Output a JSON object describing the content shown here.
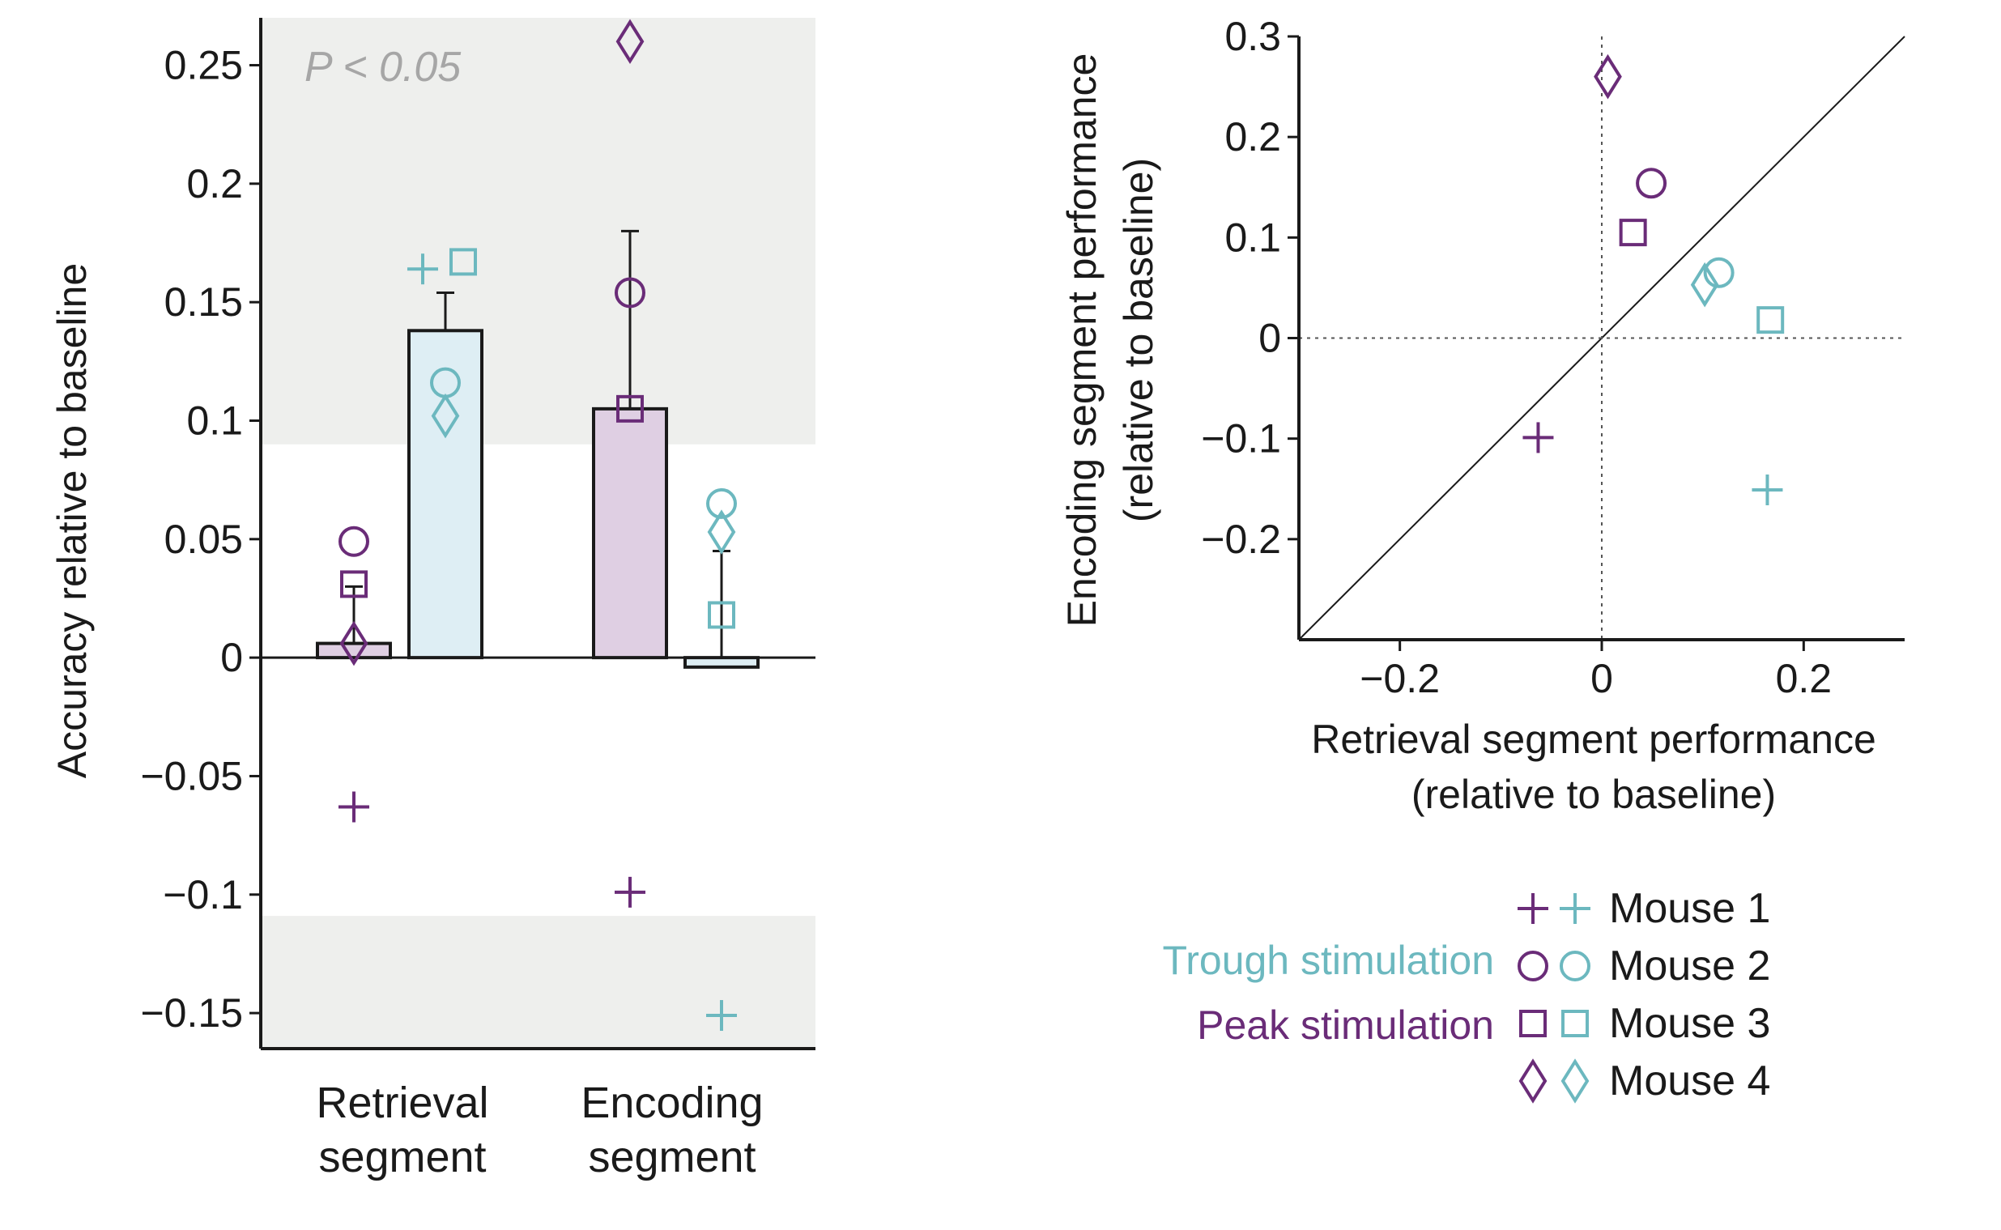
{
  "colors": {
    "trough": "#6cb8bf",
    "peak": "#6a2c78",
    "trough_fill": "#deeef4",
    "peak_fill": "#dfcfe3",
    "axis": "#1a1a1a",
    "significance_band": "#eeefed",
    "significance_text": "#a6a6a6"
  },
  "chart_data": [
    {
      "type": "bar",
      "ylabel": "Accuracy relative to baseline",
      "ylim": [
        -0.165,
        0.27
      ],
      "yticks": [
        0.25,
        0.2,
        0.15,
        0.1,
        0.05,
        0,
        -0.05,
        -0.1,
        -0.15
      ],
      "ytick_labels": [
        "0.25",
        "0.2",
        "0.15",
        "0.1",
        "0.05",
        "0",
        "−0.05",
        "−0.1",
        "−0.15"
      ],
      "significance": {
        "label": "P < 0.05",
        "upper_threshold": 0.09,
        "lower_threshold": -0.109
      },
      "groups": [
        {
          "label_line1": "Retrieval",
          "label_line2": "segment",
          "bars": [
            {
              "condition": "peak",
              "mean": 0.006,
              "err_upper": 0.03,
              "points": [
                {
                  "mouse": 1,
                  "y": -0.063
                },
                {
                  "mouse": 2,
                  "y": 0.049
                },
                {
                  "mouse": 3,
                  "y": 0.031
                },
                {
                  "mouse": 4,
                  "y": 0.006
                }
              ]
            },
            {
              "condition": "trough",
              "mean": 0.138,
              "err_upper": 0.154,
              "points": [
                {
                  "mouse": 1,
                  "y": 0.164
                },
                {
                  "mouse": 2,
                  "y": 0.116
                },
                {
                  "mouse": 3,
                  "y": 0.167
                },
                {
                  "mouse": 4,
                  "y": 0.102
                }
              ]
            }
          ]
        },
        {
          "label_line1": "Encoding",
          "label_line2": "segment",
          "bars": [
            {
              "condition": "peak",
              "mean": 0.105,
              "err_upper": 0.18,
              "points": [
                {
                  "mouse": 1,
                  "y": -0.099
                },
                {
                  "mouse": 2,
                  "y": 0.154
                },
                {
                  "mouse": 3,
                  "y": 0.105
                },
                {
                  "mouse": 4,
                  "y": 0.26
                }
              ]
            },
            {
              "condition": "trough",
              "mean": -0.004,
              "err_upper": 0.045,
              "points": [
                {
                  "mouse": 1,
                  "y": -0.151
                },
                {
                  "mouse": 2,
                  "y": 0.065
                },
                {
                  "mouse": 3,
                  "y": 0.018
                },
                {
                  "mouse": 4,
                  "y": 0.053
                }
              ]
            }
          ]
        }
      ]
    },
    {
      "type": "scatter",
      "xlabel_line1": "Retrieval segment performance",
      "xlabel_line2": "(relative to baseline)",
      "ylabel_line1": "Encoding segment performance",
      "ylabel_line2": "(relative to baseline)",
      "xlim": [
        -0.3,
        0.3
      ],
      "ylim": [
        -0.3,
        0.3
      ],
      "xticks": [
        -0.2,
        0,
        0.2
      ],
      "xtick_labels": [
        "−0.2",
        "0",
        "0.2"
      ],
      "yticks": [
        0.3,
        0.2,
        0.1,
        0,
        -0.1,
        -0.2
      ],
      "ytick_labels": [
        "0.3",
        "0.2",
        "0.1",
        "0",
        "−0.1",
        "−0.2"
      ],
      "reference_lines": [
        "identity",
        "x=0",
        "y=0"
      ],
      "points": [
        {
          "condition": "peak",
          "mouse": 1,
          "x": -0.063,
          "y": -0.099
        },
        {
          "condition": "peak",
          "mouse": 2,
          "x": 0.049,
          "y": 0.154
        },
        {
          "condition": "peak",
          "mouse": 3,
          "x": 0.031,
          "y": 0.105
        },
        {
          "condition": "peak",
          "mouse": 4,
          "x": 0.006,
          "y": 0.26
        },
        {
          "condition": "trough",
          "mouse": 1,
          "x": 0.164,
          "y": -0.151
        },
        {
          "condition": "trough",
          "mouse": 2,
          "x": 0.116,
          "y": 0.065
        },
        {
          "condition": "trough",
          "mouse": 3,
          "x": 0.167,
          "y": 0.018
        },
        {
          "condition": "trough",
          "mouse": 4,
          "x": 0.102,
          "y": 0.053
        }
      ]
    }
  ],
  "legend": {
    "trough_label": "Trough stimulation",
    "peak_label": "Peak stimulation",
    "mice": [
      {
        "mouse": 1,
        "marker": "plus",
        "label": "Mouse 1"
      },
      {
        "mouse": 2,
        "marker": "circle",
        "label": "Mouse 2"
      },
      {
        "mouse": 3,
        "marker": "square",
        "label": "Mouse 3"
      },
      {
        "mouse": 4,
        "marker": "diamond",
        "label": "Mouse 4"
      }
    ]
  }
}
